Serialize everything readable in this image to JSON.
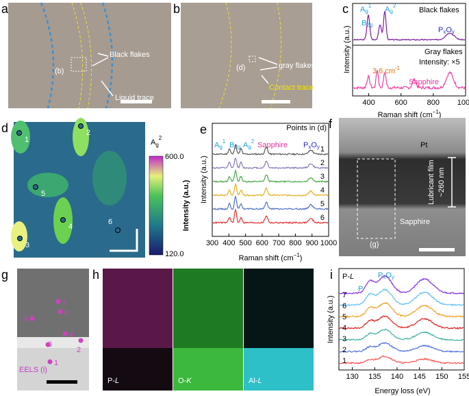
{
  "panels": {
    "a": {
      "label": "a",
      "box": "(b)",
      "black_flakes": "Black flakes",
      "liquid_trace": "Liquid trace"
    },
    "b": {
      "label": "b",
      "box": "(d)",
      "gray_flakes": "gray flakes",
      "contact_trace": "Contact trace"
    },
    "c": {
      "label": "c",
      "black_flakes": "Black flakes",
      "gray_flakes": "Gray flakes",
      "intensity": "Intensity: ×5",
      "shift": "3.6 cm",
      "shift_sup": "-1",
      "sapphire": "Sapphire",
      "ag1": [
        "A",
        "g",
        "1"
      ],
      "b2g": [
        "B",
        "2g"
      ],
      "ag2": [
        "A",
        "g",
        "2"
      ],
      "pxoy": [
        "P",
        "x",
        "O",
        "y"
      ],
      "ylabel": "Intensity (a.u.)",
      "xlabel": [
        "Raman shift (cm",
        "−1",
        ")"
      ],
      "xlim": [
        300,
        1000
      ],
      "xticks": [
        400,
        600,
        800,
        1000
      ]
    },
    "d": {
      "label": "d",
      "points": [
        "1",
        "2",
        "3",
        "4",
        "5",
        "6"
      ],
      "cbar_title": [
        "A",
        "g",
        "2"
      ],
      "cbar_max": "600.0",
      "cbar_min": "120.0",
      "cbar_label": "Intensity (a.u.)"
    },
    "e": {
      "label": "e",
      "title": "Points in (d)",
      "curves": [
        "1",
        "2",
        "3",
        "4",
        "5",
        "6"
      ],
      "ag1": [
        "A",
        "g",
        "1"
      ],
      "b2g": [
        "B",
        "2g"
      ],
      "ag2": [
        "A",
        "g",
        "2"
      ],
      "sapphire": "Sapphire",
      "pxoy": [
        "P",
        "x",
        "O",
        "y"
      ],
      "ylabel": "Intensity (a.u.)",
      "xlabel": [
        "Raman shift (cm",
        "−1",
        ")"
      ],
      "xlim": [
        300,
        1000
      ],
      "xticks": [
        300,
        400,
        500,
        600,
        700,
        800,
        900,
        1000
      ]
    },
    "f": {
      "label": "f",
      "pt": "Pt",
      "film": [
        "Lubricant film",
        "~260 nm"
      ],
      "sapphire": "Sapphire",
      "box": "(g)"
    },
    "g": {
      "label": "g",
      "points": [
        "1",
        "2",
        "3",
        "4",
        "5",
        "6",
        "7"
      ],
      "eels": "EELS (i)"
    },
    "h": {
      "label": "h",
      "maps": [
        [
          "P-",
          "L"
        ],
        [
          "O-",
          "K"
        ],
        [
          "Al-",
          "L"
        ]
      ]
    },
    "i": {
      "label": "i",
      "edge": [
        "P-",
        "L"
      ],
      "p": "P",
      "pxoy": [
        "P",
        "x",
        "O",
        "y"
      ],
      "curves": [
        "1",
        "2",
        "3",
        "4",
        "5",
        "6",
        "7"
      ],
      "ylabel": "Intensity (a.u.)",
      "xlabel": "Energy loss (eV)",
      "xlim": [
        127,
        155
      ],
      "xticks": [
        130,
        135,
        140,
        145,
        150,
        155
      ]
    }
  }
}
